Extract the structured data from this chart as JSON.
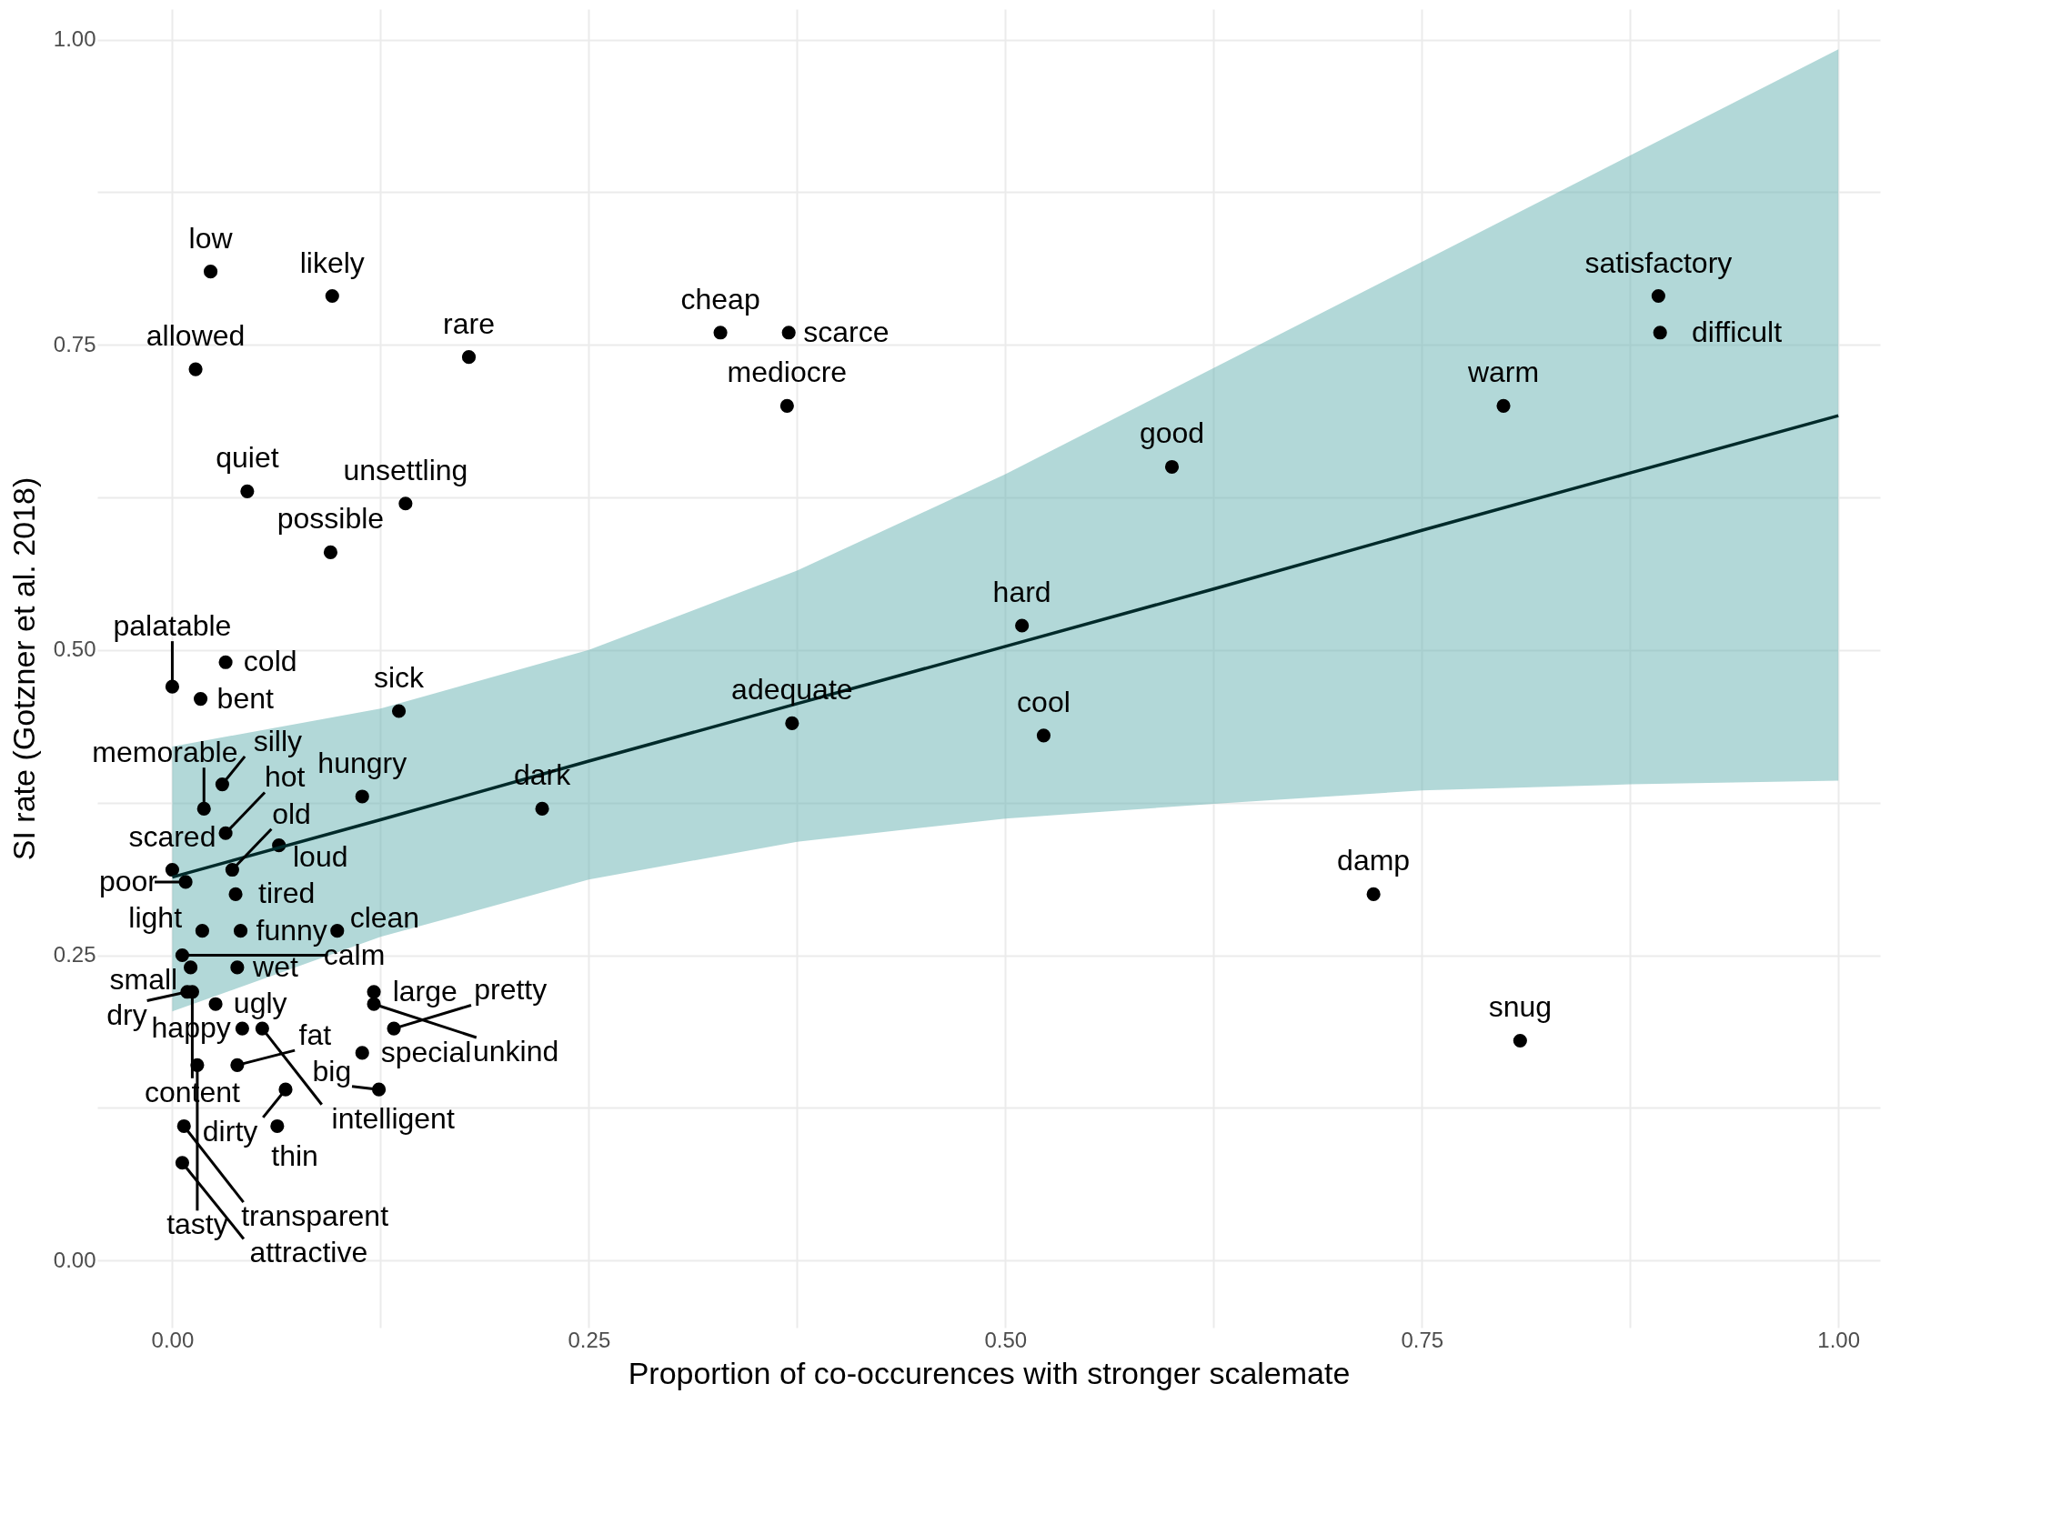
{
  "chart_data": {
    "type": "scatter",
    "xlabel": "Proportion of co-occurences with stronger scalemate",
    "ylabel": "SI rate (Gotzner et al. 2018)",
    "xlim": [
      -0.045,
      1.025
    ],
    "ylim": [
      -0.055,
      1.025
    ],
    "xticks": [
      {
        "value": 0,
        "label": "0.00"
      },
      {
        "value": 0.125,
        "label": null
      },
      {
        "value": 0.25,
        "label": "0.25"
      },
      {
        "value": 0.375,
        "label": null
      },
      {
        "value": 0.5,
        "label": "0.50"
      },
      {
        "value": 0.625,
        "label": null
      },
      {
        "value": 0.75,
        "label": "0.75"
      },
      {
        "value": 0.875,
        "label": null
      },
      {
        "value": 1,
        "label": "1.00"
      }
    ],
    "yticks": [
      {
        "value": 0,
        "label": "0.00"
      },
      {
        "value": 0.125,
        "label": null
      },
      {
        "value": 0.25,
        "label": "0.25"
      },
      {
        "value": 0.375,
        "label": null
      },
      {
        "value": 0.5,
        "label": "0.50"
      },
      {
        "value": 0.625,
        "label": null
      },
      {
        "value": 0.75,
        "label": "0.75"
      },
      {
        "value": 0.875,
        "label": null
      },
      {
        "value": 1,
        "label": "1.00"
      }
    ],
    "grid": true,
    "series": [
      {
        "type": "scatter",
        "marker": "circle",
        "color": "#000000",
        "x": [
          0.023,
          0.096,
          0.014,
          0.178,
          0.329,
          0.37,
          0.369,
          0.045,
          0.14,
          0.095,
          0.892,
          0.893,
          0.799,
          0.6,
          0.51,
          0.372,
          0.523,
          0.222,
          0.721,
          0.809,
          0.0,
          0.032,
          0.017,
          0.136,
          0.03,
          0.019,
          0.114,
          0.032,
          0.064,
          0.036,
          0.0,
          0.008,
          0.038,
          0.018,
          0.041,
          0.099,
          0.011,
          0.039,
          0.006,
          0.012,
          0.009,
          0.026,
          0.121,
          0.121,
          0.042,
          0.054,
          0.133,
          0.114,
          0.015,
          0.039,
          0.068,
          0.124,
          0.007,
          0.063,
          0.006
        ],
        "values": [
          0.81,
          0.79,
          0.73,
          0.74,
          0.76,
          0.76,
          0.7,
          0.63,
          0.62,
          0.58,
          0.79,
          0.76,
          0.7,
          0.65,
          0.52,
          0.44,
          0.43,
          0.37,
          0.3,
          0.18,
          0.47,
          0.49,
          0.46,
          0.45,
          0.39,
          0.37,
          0.38,
          0.35,
          0.34,
          0.32,
          0.32,
          0.31,
          0.3,
          0.27,
          0.27,
          0.27,
          0.24,
          0.24,
          0.25,
          0.22,
          0.22,
          0.21,
          0.22,
          0.21,
          0.19,
          0.19,
          0.19,
          0.17,
          0.16,
          0.16,
          0.14,
          0.14,
          0.11,
          0.11,
          0.08
        ]
      },
      {
        "type": "line",
        "color": "#012a2a",
        "x": [
          0,
          0.125,
          0.25,
          0.375,
          0.5,
          0.625,
          0.75,
          0.875,
          1
        ],
        "values": [
          0.314,
          0.361,
          0.409,
          0.456,
          0.503,
          0.55,
          0.598,
          0.645,
          0.692
        ],
        "lower": [
          0.204,
          0.265,
          0.312,
          0.343,
          0.362,
          0.374,
          0.385,
          0.39,
          0.393
        ],
        "upper": [
          0.421,
          0.452,
          0.5,
          0.565,
          0.644,
          0.731,
          0.818,
          0.905,
          0.992
        ]
      }
    ],
    "annotations": [
      {
        "text": "low",
        "x": 0.023,
        "y": 0.81
      },
      {
        "text": "likely",
        "x": 0.096,
        "y": 0.79
      },
      {
        "text": "allowed",
        "x": 0.014,
        "y": 0.73
      },
      {
        "text": "rare",
        "x": 0.178,
        "y": 0.74
      },
      {
        "text": "cheap",
        "x": 0.329,
        "y": 0.76
      },
      {
        "text": "scarce",
        "x": 0.37,
        "y": 0.76
      },
      {
        "text": "mediocre",
        "x": 0.369,
        "y": 0.7
      },
      {
        "text": "quiet",
        "x": 0.045,
        "y": 0.63
      },
      {
        "text": "unsettling",
        "x": 0.14,
        "y": 0.62
      },
      {
        "text": "possible",
        "x": 0.095,
        "y": 0.58
      },
      {
        "text": "satisfactory",
        "x": 0.892,
        "y": 0.79
      },
      {
        "text": "difficult",
        "x": 0.893,
        "y": 0.76
      },
      {
        "text": "warm",
        "x": 0.799,
        "y": 0.7
      },
      {
        "text": "good",
        "x": 0.6,
        "y": 0.65
      },
      {
        "text": "hard",
        "x": 0.51,
        "y": 0.52
      },
      {
        "text": "adequate",
        "x": 0.372,
        "y": 0.44
      },
      {
        "text": "cool",
        "x": 0.523,
        "y": 0.43
      },
      {
        "text": "dark",
        "x": 0.222,
        "y": 0.37
      },
      {
        "text": "damp",
        "x": 0.721,
        "y": 0.3
      },
      {
        "text": "snug",
        "x": 0.809,
        "y": 0.18
      },
      {
        "text": "palatable",
        "x": 0.0,
        "y": 0.47
      },
      {
        "text": "cold",
        "x": 0.032,
        "y": 0.49
      },
      {
        "text": "bent",
        "x": 0.017,
        "y": 0.46
      },
      {
        "text": "sick",
        "x": 0.136,
        "y": 0.45
      },
      {
        "text": "silly",
        "x": 0.03,
        "y": 0.39
      },
      {
        "text": "memorable",
        "x": 0.019,
        "y": 0.37
      },
      {
        "text": "hungry",
        "x": 0.114,
        "y": 0.38
      },
      {
        "text": "hot",
        "x": 0.032,
        "y": 0.35
      },
      {
        "text": "loud",
        "x": 0.064,
        "y": 0.34
      },
      {
        "text": "old",
        "x": 0.036,
        "y": 0.32
      },
      {
        "text": "scared",
        "x": 0.0,
        "y": 0.32
      },
      {
        "text": "poor",
        "x": 0.008,
        "y": 0.31
      },
      {
        "text": "tired",
        "x": 0.038,
        "y": 0.3
      },
      {
        "text": "light",
        "x": 0.018,
        "y": 0.27
      },
      {
        "text": "funny",
        "x": 0.041,
        "y": 0.27
      },
      {
        "text": "clean",
        "x": 0.099,
        "y": 0.27
      },
      {
        "text": "small",
        "x": 0.011,
        "y": 0.24
      },
      {
        "text": "wet",
        "x": 0.039,
        "y": 0.24
      },
      {
        "text": "calm",
        "x": 0.006,
        "y": 0.25
      },
      {
        "text": "content",
        "x": 0.012,
        "y": 0.22
      },
      {
        "text": "dry",
        "x": 0.009,
        "y": 0.22
      },
      {
        "text": "ugly",
        "x": 0.026,
        "y": 0.21
      },
      {
        "text": "large",
        "x": 0.121,
        "y": 0.22
      },
      {
        "text": "unkind",
        "x": 0.121,
        "y": 0.21
      },
      {
        "text": "happy",
        "x": 0.042,
        "y": 0.19
      },
      {
        "text": "intelligent",
        "x": 0.054,
        "y": 0.19
      },
      {
        "text": "pretty",
        "x": 0.133,
        "y": 0.19
      },
      {
        "text": "special",
        "x": 0.114,
        "y": 0.17
      },
      {
        "text": "tasty",
        "x": 0.015,
        "y": 0.16
      },
      {
        "text": "fat",
        "x": 0.039,
        "y": 0.16
      },
      {
        "text": "dirty",
        "x": 0.068,
        "y": 0.14
      },
      {
        "text": "big",
        "x": 0.124,
        "y": 0.14
      },
      {
        "text": "transparent",
        "x": 0.007,
        "y": 0.11
      },
      {
        "text": "thin",
        "x": 0.063,
        "y": 0.11
      },
      {
        "text": "attractive",
        "x": 0.006,
        "y": 0.08
      }
    ]
  }
}
